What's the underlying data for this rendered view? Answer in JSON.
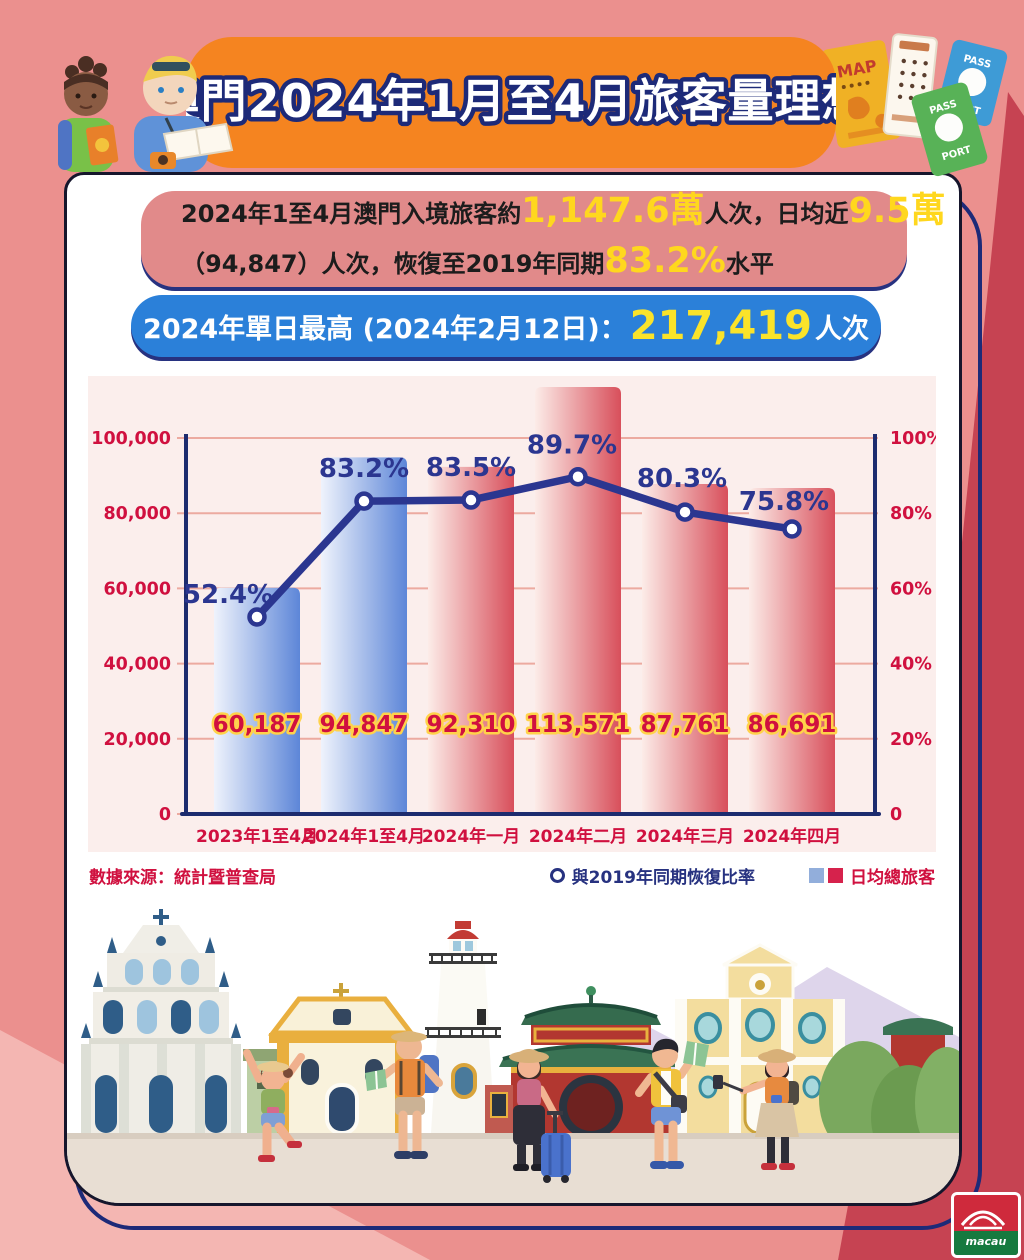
{
  "header": {
    "title": "澳門2024年1月至4月旅客量理想"
  },
  "summary": {
    "line1_prefix": "2024年1至4月澳門入境旅客約",
    "line1_value1": "1,147.6萬",
    "line1_mid": "人次，日均近",
    "line1_value2": "9.5萬",
    "line2_prefix": "（94,847）人次，恢復至2019年同期",
    "line2_value": "83.2%",
    "line2_suffix": "水平"
  },
  "daily_max": {
    "prefix": "2024年單日最高 (2024年2月12日)：",
    "value": "217,419",
    "suffix": "人次"
  },
  "chart_data": {
    "type": "bar+line",
    "categories": [
      "2023年1至4月",
      "2024年1至4月",
      "2024年一月",
      "2024年二月",
      "2024年三月",
      "2024年四月"
    ],
    "series": [
      {
        "name": "日均總旅客",
        "type": "bar",
        "values": [
          60187,
          94847,
          92310,
          113571,
          87761,
          86691
        ],
        "value_labels": [
          "60,187",
          "94,847",
          "92,310",
          "113,571",
          "87,761",
          "86,691"
        ],
        "colors": [
          "blue",
          "blue",
          "red",
          "red",
          "red",
          "red"
        ]
      },
      {
        "name": "與2019年同期恢復比率",
        "type": "line",
        "unit": "%",
        "values": [
          52.4,
          83.2,
          83.5,
          89.7,
          80.3,
          75.8
        ],
        "point_labels": [
          "52.4%",
          "83.2%",
          "83.5%",
          "89.7%",
          "80.3%",
          "75.8%"
        ]
      }
    ],
    "left_axis": {
      "min": 0,
      "max": 100000,
      "tick_labels": [
        "0",
        "20,000",
        "40,000",
        "60,000",
        "80,000",
        "100,000"
      ]
    },
    "right_axis": {
      "min": 0,
      "max": 100,
      "tick_labels": [
        "0",
        "20%",
        "40%",
        "60%",
        "80%",
        "100%"
      ]
    },
    "grid": true,
    "legend_position": "bottom-right",
    "palette": {
      "bar_blue": "#5d86d8",
      "bar_blue_light": "#eff3fc",
      "bar_red": "#d84f5b",
      "bar_red_light": "#fcece8",
      "line": "#2b3690",
      "axis_label": "#d0103f",
      "grid_line": "#ecaaa0",
      "axis_line": "#1c2b6e",
      "value_fill": "#d0103f",
      "value_outline": "#ffd24a",
      "plot_bg": "#fbeeec"
    }
  },
  "legend": {
    "line_label": "與2019年同期恢復比率",
    "bar_label": "日均總旅客"
  },
  "source": "數據來源：統計暨普查局",
  "decor": {
    "map_label": "MAP",
    "passport_blue": {
      "line1": "PASS",
      "line2": "PORT"
    },
    "passport_green": {
      "line1": "PASS",
      "line2": "PORT"
    },
    "logo_text": "macau"
  }
}
